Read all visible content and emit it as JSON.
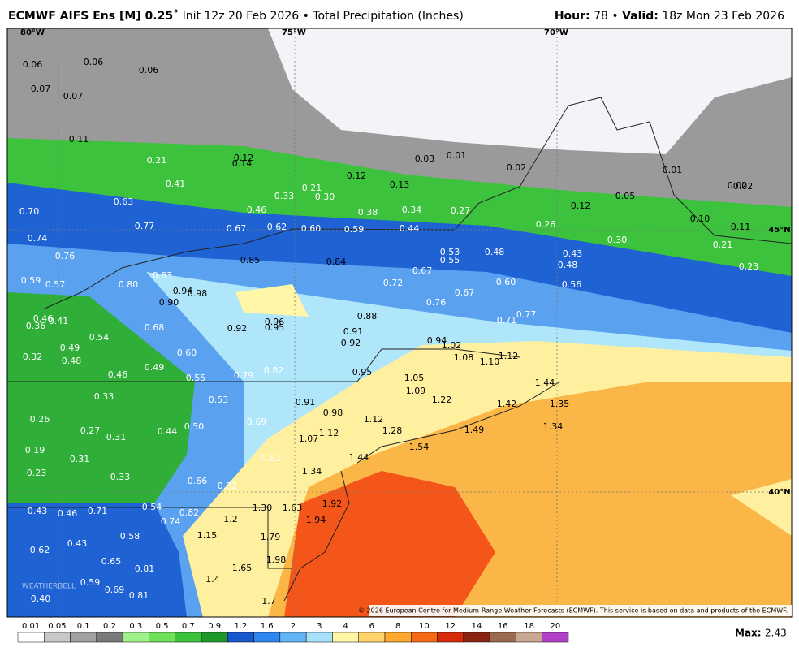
{
  "header": {
    "title": "ECMWF AIFS Ens [M] 0.25˚",
    "subtitle": "Init 12z 20 Feb 2026 • Total Precipitation (Inches)",
    "hour_label": "Hour:",
    "hour": "78 •",
    "valid_label": "Valid:",
    "valid": "18z Mon 23 Feb 2026"
  },
  "gridlines": {
    "lon": [
      "80°W",
      "75°W",
      "70°W"
    ],
    "lat": [
      "45°N",
      "40°N"
    ]
  },
  "map_labels": [
    "0.06",
    "0.06",
    "0.06",
    "0.07",
    "0.07",
    "0.11",
    "0.21",
    "0.12",
    "0.14",
    "0.41",
    "0.63",
    "0.33",
    "0.21",
    "0.30",
    "0.12",
    "0.13",
    "0.03",
    "0.01",
    "0.02",
    "0.01",
    "0.05",
    "0.12",
    "0.02",
    "0.02",
    "0.10",
    "0.11",
    "0.70",
    "0.77",
    "0.46",
    "0.38",
    "0.34",
    "0.27",
    "0.26",
    "0.30",
    "0.21",
    "0.23",
    "0.67",
    "0.62",
    "0.60",
    "0.59",
    "0.44",
    "0.74",
    "0.76",
    "0.85",
    "0.84",
    "0.53",
    "0.55",
    "0.48",
    "0.43",
    "0.48",
    "0.67",
    "0.72",
    "0.59",
    "0.57",
    "0.80",
    "0.83",
    "0.94",
    "0.98",
    "0.90",
    "0.60",
    "0.56",
    "0.67",
    "0.76",
    "0.77",
    "0.71",
    "0.88",
    "0.96",
    "0.95",
    "0.92",
    "0.91",
    "0.92",
    "0.46",
    "0.41",
    "0.36",
    "0.68",
    "0.54",
    "0.49",
    "0.48",
    "0.32",
    "0.60",
    "0.49",
    "0.46",
    "0.55",
    "0.79",
    "0.82",
    "0.95",
    "0.94",
    "1.02",
    "1.08",
    "1.10",
    "1.12",
    "1.05",
    "1.09",
    "1.22",
    "1.44",
    "1.42",
    "1.35",
    "1.34",
    "1.49",
    "0.33",
    "0.53",
    "0.91",
    "0.98",
    "1.12",
    "1.28",
    "0.26",
    "0.27",
    "0.31",
    "0.44",
    "0.50",
    "0.69",
    "1.07",
    "1.12",
    "1.54",
    "0.19",
    "0.31",
    "0.82",
    "1.44",
    "0.23",
    "0.33",
    "0.66",
    "0.82",
    "1.34",
    "0.43",
    "0.46",
    "0.71",
    "0.54",
    "0.82",
    "0.74",
    "1.30",
    "1.63",
    "1.92",
    "1.2",
    "1.94",
    "0.58",
    "1.15",
    "1.79",
    "0.62",
    "0.43",
    "0.65",
    "1.98",
    "0.81",
    "1.65",
    "0.59",
    "0.69",
    "1.4",
    "0.40",
    "0.81",
    "1.7"
  ],
  "watermark": "WEATHERBELL",
  "copyright": "© 2026 European Centre for Medium-Range Weather Forecasts (ECMWF). This service is based on data and products of the ECMWF.",
  "colorbar": {
    "labels": [
      "0.01",
      "0.05",
      "0.1",
      "0.2",
      "0.3",
      "0.5",
      "0.7",
      "0.9",
      "1.2",
      "1.6",
      "2",
      "3",
      "4",
      "6",
      "8",
      "10",
      "12",
      "14",
      "16",
      "18",
      "20"
    ],
    "colors": [
      "#ffffff",
      "#c8c8c8",
      "#a0a0a0",
      "#7a7a7a",
      "#9ff28a",
      "#6ee05a",
      "#3cc23c",
      "#1f9a2a",
      "#1758cc",
      "#2f86ee",
      "#64b4f8",
      "#a8e2fa",
      "#fff6a8",
      "#ffd26a",
      "#ffa82e",
      "#f56a14",
      "#d62a0a",
      "#8c2414",
      "#9a6a50",
      "#c8a890",
      "#b040c8"
    ]
  },
  "max": {
    "label": "Max:",
    "value": "2.43"
  }
}
